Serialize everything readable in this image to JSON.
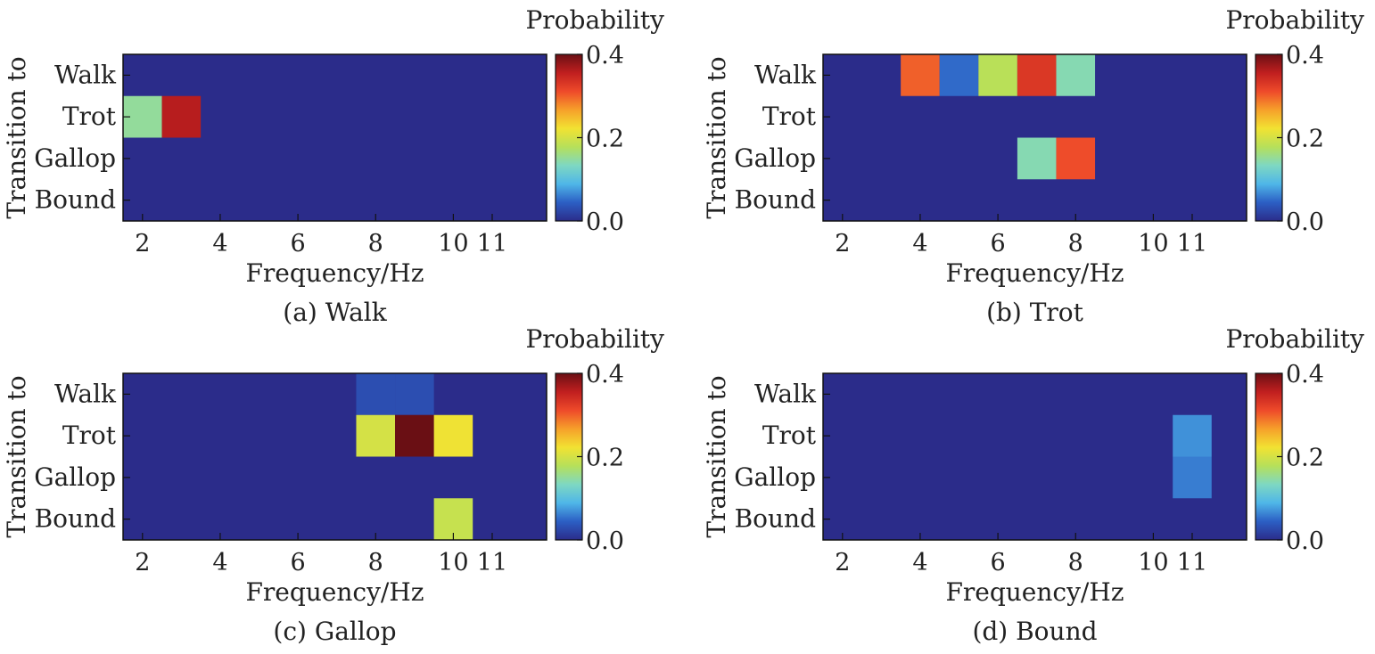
{
  "colorbar": {
    "title": "Probability",
    "ticks": [
      "0.0",
      "0.2",
      "0.4"
    ],
    "tick_values": [
      0.0,
      0.2,
      0.4
    ],
    "colormap": [
      "#2b2c8a",
      "#2c5fc4",
      "#4fb6e8",
      "#7ed8c2",
      "#b6e05a",
      "#f2e232",
      "#f6a02a",
      "#ee4a2a",
      "#c01f1f",
      "#6a0f14"
    ]
  },
  "chart_data": [
    {
      "type": "heatmap",
      "title": "(a) Walk",
      "xlabel": "Frequency/Hz",
      "ylabel": "Transition to",
      "x": [
        2,
        3,
        4,
        5,
        6,
        7,
        8,
        9,
        10,
        11
      ],
      "x_ticks": [
        "2",
        "4",
        "6",
        "8",
        "10",
        "11"
      ],
      "x_tick_values": [
        2,
        4,
        6,
        8,
        10,
        11
      ],
      "y": [
        "Walk",
        "Trot",
        "Gallop",
        "Bound"
      ],
      "zlim": [
        0,
        0.4
      ],
      "z": [
        [
          0,
          0,
          0,
          0,
          0,
          0,
          0,
          0,
          0,
          0
        ],
        [
          0.15,
          0.36,
          0,
          0,
          0,
          0,
          0,
          0,
          0,
          0
        ],
        [
          0,
          0,
          0,
          0,
          0,
          0,
          0,
          0,
          0,
          0
        ],
        [
          0,
          0,
          0,
          0,
          0,
          0,
          0,
          0,
          0,
          0
        ]
      ]
    },
    {
      "type": "heatmap",
      "title": "(b) Trot",
      "xlabel": "Frequency/Hz",
      "ylabel": "Transition to",
      "x": [
        2,
        3,
        4,
        5,
        6,
        7,
        8,
        9,
        10,
        11
      ],
      "x_ticks": [
        "2",
        "4",
        "6",
        "8",
        "10",
        "11"
      ],
      "x_tick_values": [
        2,
        4,
        6,
        8,
        10,
        11
      ],
      "y": [
        "Walk",
        "Trot",
        "Gallop",
        "Bound"
      ],
      "zlim": [
        0,
        0.4
      ],
      "z": [
        [
          0,
          0,
          0.3,
          0.05,
          0.18,
          0.33,
          0.14,
          0,
          0,
          0
        ],
        [
          0,
          0,
          0,
          0,
          0,
          0,
          0,
          0,
          0,
          0
        ],
        [
          0,
          0,
          0,
          0,
          0,
          0.14,
          0.31,
          0,
          0,
          0
        ],
        [
          0,
          0,
          0,
          0,
          0,
          0,
          0,
          0,
          0,
          0
        ]
      ]
    },
    {
      "type": "heatmap",
      "title": "(c) Gallop",
      "xlabel": "Frequency/Hz",
      "ylabel": "Transition to",
      "x": [
        2,
        3,
        4,
        5,
        6,
        7,
        8,
        9,
        10,
        11
      ],
      "x_ticks": [
        "2",
        "4",
        "6",
        "8",
        "10",
        "11"
      ],
      "x_tick_values": [
        2,
        4,
        6,
        8,
        10,
        11
      ],
      "y": [
        "Walk",
        "Trot",
        "Gallop",
        "Bound"
      ],
      "zlim": [
        0,
        0.4
      ],
      "z": [
        [
          0,
          0,
          0,
          0,
          0,
          0,
          0.03,
          0.03,
          0,
          0
        ],
        [
          0,
          0,
          0,
          0,
          0,
          0,
          0.2,
          0.4,
          0.22,
          0
        ],
        [
          0,
          0,
          0,
          0,
          0,
          0,
          0,
          0,
          0,
          0
        ],
        [
          0,
          0,
          0,
          0,
          0,
          0,
          0,
          0,
          0.19,
          0
        ]
      ]
    },
    {
      "type": "heatmap",
      "title": "(d) Bound",
      "xlabel": "Frequency/Hz",
      "ylabel": "Transition to",
      "x": [
        2,
        3,
        4,
        5,
        6,
        7,
        8,
        9,
        10,
        11
      ],
      "x_ticks": [
        "2",
        "4",
        "6",
        "8",
        "10",
        "11"
      ],
      "x_tick_values": [
        2,
        4,
        6,
        8,
        10,
        11
      ],
      "y": [
        "Walk",
        "Trot",
        "Gallop",
        "Bound"
      ],
      "zlim": [
        0,
        0.4
      ],
      "z": [
        [
          0,
          0,
          0,
          0,
          0,
          0,
          0,
          0,
          0,
          0
        ],
        [
          0,
          0,
          0,
          0,
          0,
          0,
          0,
          0,
          0,
          0.07
        ],
        [
          0,
          0,
          0,
          0,
          0,
          0,
          0,
          0,
          0,
          0.06
        ],
        [
          0,
          0,
          0,
          0,
          0,
          0,
          0,
          0,
          0,
          0
        ]
      ]
    }
  ]
}
